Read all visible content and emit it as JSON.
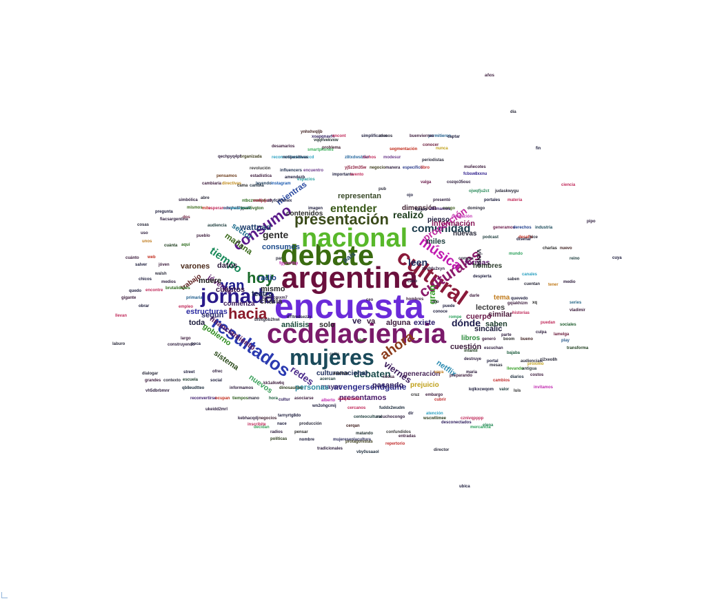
{
  "words": [
    {
      "t": "encuesta",
      "c": "#6a2bd9"
    },
    {
      "t": "argentina",
      "c": "#6a0f3c"
    },
    {
      "t": "ccdelaciencia",
      "c": "#7a1a6a"
    },
    {
      "t": "debate",
      "c": "#3a6b10"
    },
    {
      "t": "mujeres",
      "c": "#1a4a5a"
    },
    {
      "t": "nacional",
      "c": "#58b82a"
    },
    {
      "t": "cultural",
      "c": "#8a1a3a"
    },
    {
      "t": "jornada",
      "c": "#2a1a8a"
    },
    {
      "t": "presentación",
      "c": "#3a4a1a"
    },
    {
      "t": "resultados",
      "c": "#2a3ab0"
    },
    {
      "t": "hoy",
      "c": "#1a6a2a"
    },
    {
      "t": "consumo",
      "c": "#5a1a8a"
    },
    {
      "t": "hacia",
      "c": "#8a1a2a"
    },
    {
      "t": "culturales",
      "c": "#8a1a6a"
    },
    {
      "t": "música",
      "c": "#c01ab0"
    },
    {
      "t": "van",
      "c": "#1a1a8a"
    },
    {
      "t": "ahora",
      "c": "#8a3a1a"
    },
    {
      "t": "entender",
      "c": "#3a5a1a"
    },
    {
      "t": "tiempo",
      "c": "#1a8a5a"
    },
    {
      "t": "comunidad",
      "c": "#1a3a4a"
    },
    {
      "t": "gente",
      "c": "#2a2a2a"
    },
    {
      "t": "debaten",
      "c": "#1a4a4a"
    },
    {
      "t": "proporción",
      "c": "#c02aa0"
    },
    {
      "t": "realizó",
      "c": "#1a3a1a"
    },
    {
      "t": "ve",
      "c": "#2a1a4a"
    },
    {
      "t": "va",
      "c": "#3a1a3a"
    },
    {
      "t": "leen",
      "c": "#1a2a5a"
    },
    {
      "t": "dónde",
      "c": "#1a1a4a"
    },
    {
      "t": "redes",
      "c": "#4a2a8a"
    },
    {
      "t": "viernes",
      "c": "#3a1a5a"
    },
    {
      "t": "gran",
      "c": "#3aa02a"
    },
    {
      "t": "mientras",
      "c": "#2a4aa0"
    },
    {
      "t": "sector",
      "c": "#1a6a8a"
    },
    {
      "t": "wattpad",
      "c": "#1a3a6a"
    },
    {
      "t": "mañana",
      "c": "#3a6a1a"
    },
    {
      "t": "jóvenes",
      "c": "#5a1a6a"
    },
    {
      "t": "estructuras",
      "c": "#2a2aa0"
    },
    {
      "t": "gobierno",
      "c": "#2a8a1a"
    },
    {
      "t": "financiamiento",
      "c": "#5a1a5a"
    },
    {
      "t": "sistema",
      "c": "#2a4a1a"
    },
    {
      "t": "nuevos",
      "c": "#3aa05a"
    },
    {
      "t": "avengersendgame",
      "c": "#2a2a8a"
    },
    {
      "t": "presentamos",
      "c": "#4a1a6a"
    },
    {
      "t": "culturanacionar",
      "c": "#1a2a5a"
    },
    {
      "t": "representan",
      "c": "#3a4a2a"
    },
    {
      "t": "contenidos",
      "c": "#2a2a2a"
    },
    {
      "t": "dimensión",
      "c": "#3a1a2a"
    },
    {
      "t": "pienso",
      "c": "#1a1a3a"
    },
    {
      "t": "información",
      "c": "#8a1a5a"
    },
    {
      "t": "nuevas",
      "c": "#2a2a3a"
    },
    {
      "t": "miles",
      "c": "#1a3a3a"
    },
    {
      "t": "formas",
      "c": "#5a1a6a"
    },
    {
      "t": "hombres",
      "c": "#2a3a2a"
    },
    {
      "t": "viene",
      "c": "#1a1a2a"
    },
    {
      "t": "tema",
      "c": "#c07a1a"
    },
    {
      "t": "lectores",
      "c": "#3a3a3a"
    },
    {
      "t": "similar",
      "c": "#4a1a3a"
    },
    {
      "t": "saben",
      "c": "#1a3a2a"
    },
    {
      "t": "cuerpo",
      "c": "#6a1a4a"
    },
    {
      "t": "existe",
      "c": "#2a1a6a"
    },
    {
      "t": "libros",
      "c": "#2a8a3a"
    },
    {
      "t": "sincalic",
      "c": "#1a1a3a"
    },
    {
      "t": "cuestión",
      "c": "#3a1a3a"
    },
    {
      "t": "netflix",
      "c": "#2a8ab0"
    },
    {
      "t": "generación",
      "c": "#4a2a5a"
    },
    {
      "t": "prejuicio",
      "c": "#c0a01a"
    },
    {
      "t": "mayor",
      "c": "#3a2a6a"
    },
    {
      "t": "personas",
      "c": "#2a8aa0"
    },
    {
      "t": "pasando",
      "c": "#2a1a5a"
    },
    {
      "t": "teatro",
      "c": "#1a2a4a"
    },
    {
      "t": "consumos",
      "c": "#1a4a8a"
    },
    {
      "t": "mismo",
      "c": "#2a2a2a"
    },
    {
      "t": "charla",
      "c": "#3a3a3a"
    },
    {
      "t": "radio",
      "c": "#1a3a8a"
    },
    {
      "t": "datos",
      "c": "#2a1a3a"
    },
    {
      "t": "cuántos",
      "c": "#3a1a4a"
    },
    {
      "t": "muere",
      "c": "#1a1a1a"
    },
    {
      "t": "varones",
      "c": "#4a2a1a"
    },
    {
      "t": "según",
      "c": "#2a2a6a"
    },
    {
      "t": "toda",
      "c": "#1a1a3a"
    },
    {
      "t": "comienza",
      "c": "#3a1a5a"
    },
    {
      "t": "análisis",
      "c": "#1a4a3a"
    },
    {
      "t": "solo",
      "c": "#2a2a2a"
    },
    {
      "t": "alguna",
      "c": "#3a1a3a"
    },
    {
      "t": "trabajo",
      "c": "#5a1a1a"
    },
    {
      "t": "país",
      "c": "#2a4a6a"
    },
    {
      "t": "encuentro",
      "c": "#6a3a8a"
    },
    {
      "t": "problema",
      "c": "#3a1a2a"
    },
    {
      "t": "segmentación",
      "c": "#c02a1a"
    },
    {
      "t": "periodistas",
      "c": "#2a2a3a"
    },
    {
      "t": "influencers",
      "c": "#1a2a4a"
    },
    {
      "t": "estadística",
      "c": "#3a1a3a"
    },
    {
      "t": "revolución",
      "c": "#3a3a3a"
    },
    {
      "t": "pensamos",
      "c": "#6a3a1a"
    },
    {
      "t": "leyendo",
      "c": "#1a3a5a"
    },
    {
      "t": "directivas",
      "c": "#c08a1a"
    },
    {
      "t": "espacios",
      "c": "#2aa0a0"
    },
    {
      "t": "instagram",
      "c": "#1a5ab0"
    },
    {
      "t": "desamarios",
      "c": "#3a1a3a"
    },
    {
      "t": "recomendacionesccd",
      "c": "#2aa0c0"
    },
    {
      "t": "smartphones",
      "c": "#3ab05a"
    },
    {
      "t": "notipositivas",
      "c": "#1a1a3a"
    },
    {
      "t": "organizada",
      "c": "#3a3a1a"
    },
    {
      "t": "qechpyq4pf",
      "c": "#2a1a3a"
    },
    {
      "t": "vqqhvekvxw",
      "c": "#1a2a2a"
    },
    {
      "t": "xoapqnavf4",
      "c": "#2a1a5a"
    },
    {
      "t": "ynhxhvqljb",
      "c": "#3a1a1a"
    },
    {
      "t": "z8txdwsb5w",
      "c": "#2a6aa0"
    },
    {
      "t": "nichos",
      "c": "#c02a5a"
    },
    {
      "t": "modesur",
      "c": "#6a3a8a"
    },
    {
      "t": "nunca",
      "c": "#c0a01a"
    },
    {
      "t": "yj5z3m35w",
      "c": "#8a1a3a"
    },
    {
      "t": "específico",
      "c": "#2a3a8a"
    },
    {
      "t": "libro",
      "c": "#c02a2a"
    },
    {
      "t": "muñecotes",
      "c": "#3a1a3a"
    },
    {
      "t": "valga",
      "c": "#6a1a4a"
    },
    {
      "t": "cozqo35ouc",
      "c": "#2a1a3a"
    },
    {
      "t": "ojwqfju2ct",
      "c": "#2a8a5a"
    },
    {
      "t": "judaskwygu",
      "c": "#2a2a3a"
    },
    {
      "t": "portales",
      "c": "#1a1a3a"
    },
    {
      "t": "materia",
      "c": "#c02a5a"
    },
    {
      "t": "presentó",
      "c": "#2a1a3a"
    },
    {
      "t": "congo",
      "c": "#3a5a1a"
    },
    {
      "t": "afirmamos",
      "c": "#3a1a6a"
    },
    {
      "t": "domingo",
      "c": "#2a2a3a"
    },
    {
      "t": "generamos",
      "c": "#6a1a4a"
    },
    {
      "t": "derechos",
      "c": "#1a3a8a"
    },
    {
      "t": "industria",
      "c": "#1a4a5a"
    },
    {
      "t": "podcast",
      "c": "#1a3a3a"
    },
    {
      "t": "desafío",
      "c": "#c02a1a"
    },
    {
      "t": "hice",
      "c": "#2a2a3a"
    },
    {
      "t": "mundo",
      "c": "#2aa05a"
    },
    {
      "t": "charlas",
      "c": "#2a2a2a"
    },
    {
      "t": "nuevo",
      "c": "#3a1a1a"
    },
    {
      "t": "tener",
      "c": "#c07a1a"
    },
    {
      "t": "medio",
      "c": "#2a1a3a"
    },
    {
      "t": "reino",
      "c": "#1a3a3a"
    },
    {
      "t": "series",
      "c": "#2a6a8a"
    },
    {
      "t": "vladimir",
      "c": "#3a1a3a"
    },
    {
      "t": "sociales",
      "c": "#1a5a2a"
    },
    {
      "t": "puedan",
      "c": "#c02a5a"
    },
    {
      "t": "lamelga",
      "c": "#6a1a3a"
    },
    {
      "t": "play",
      "c": "#2a5a8a"
    },
    {
      "t": "transforma",
      "c": "#1a3a1a"
    },
    {
      "t": "zj2xeo8h",
      "c": "#2a2a3a"
    },
    {
      "t": "próximo",
      "c": "#c0a01a"
    },
    {
      "t": "llevando",
      "c": "#3aa02a"
    },
    {
      "t": "cambios",
      "c": "#c02a2a"
    },
    {
      "t": "invitamos",
      "c": "#c02ab0"
    },
    {
      "t": "reconvertirse",
      "c": "#3a1a6a"
    },
    {
      "t": "ocupan",
      "c": "#c02a1a"
    },
    {
      "t": "tiempos",
      "c": "#2a5a1a"
    },
    {
      "t": "mano",
      "c": "#2a2a3a"
    },
    {
      "t": "hora",
      "c": "#1a5a3a"
    },
    {
      "t": "asociarse",
      "c": "#3a1a3a"
    },
    {
      "t": "auspiciadas",
      "c": "#c02a5a"
    },
    {
      "t": "cruz",
      "c": "#2a2a2a"
    },
    {
      "t": "embargo",
      "c": "#3a1a3a"
    },
    {
      "t": "kqlkxcwqom",
      "c": "#1a1a3a"
    },
    {
      "t": "informamos",
      "c": "#2a1a3a"
    },
    {
      "t": "dinosaurios",
      "c": "#2a3a1a"
    },
    {
      "t": "qb8eudtteo",
      "c": "#1a2a3a"
    },
    {
      "t": "vh5dbrbmnr",
      "c": "#2a1a3a"
    },
    {
      "t": "kk1alkw6q",
      "c": "#3a1a3a"
    },
    {
      "t": "escuela",
      "c": "#1a3a2a"
    },
    {
      "t": "cubrir",
      "c": "#c02a2a"
    },
    {
      "t": "wn2ohgcmij",
      "c": "#1a1a3a"
    },
    {
      "t": "cercanos",
      "c": "#c02a5a"
    },
    {
      "t": "fuddx2wudm",
      "c": "#1a2a3a"
    },
    {
      "t": "escuchocongo",
      "c": "#2a1a3a"
    },
    {
      "t": "centeocultural",
      "c": "#1a3a3a"
    },
    {
      "t": "confundidos",
      "c": "#3a3a3a"
    },
    {
      "t": "cznivqpppp",
      "c": "#c02a5a"
    },
    {
      "t": "mercancía",
      "c": "#2aa05a"
    },
    {
      "t": "decidan",
      "c": "#3aa05a"
    },
    {
      "t": "kebhacqdj",
      "c": "#2a1a3a"
    },
    {
      "t": "negocios",
      "c": "#3a1a2a"
    },
    {
      "t": "tarnyrtg8do",
      "c": "#1a1a3a"
    },
    {
      "t": "radios",
      "c": "#2a1a3a"
    },
    {
      "t": "pensar",
      "c": "#2a2a2a"
    },
    {
      "t": "matando",
      "c": "#1a2a2a"
    },
    {
      "t": "entradas",
      "c": "#3a1a3a"
    },
    {
      "t": "políticas",
      "c": "#2a3a1a"
    },
    {
      "t": "nombre",
      "c": "#1a1a3a"
    },
    {
      "t": "mujeresenlacultura",
      "c": "#2a2a5a"
    },
    {
      "t": "repertorio",
      "c": "#c02a2a"
    },
    {
      "t": "tradicionales",
      "c": "#2a1a3a"
    },
    {
      "t": "protagonistas",
      "c": "#3a3a1a"
    },
    {
      "t": "producción",
      "c": "#2a2a3a"
    },
    {
      "t": "vby0usaaol",
      "c": "#1a2a3a"
    },
    {
      "t": "wscwllimee",
      "c": "#2a3a1a"
    },
    {
      "t": "desconectados",
      "c": "#2a1a5a"
    },
    {
      "t": "encont",
      "c": "#c02a5a"
    },
    {
      "t": "simplificados",
      "c": "#1a1a3a"
    },
    {
      "t": "menos",
      "c": "#2a2a3a"
    },
    {
      "t": "permitieron",
      "c": "#1a5a8a"
    },
    {
      "t": "buenviernes",
      "c": "#3a1a3a"
    },
    {
      "t": "captar",
      "c": "#1a1a3a"
    },
    {
      "t": "conocer",
      "c": "#6a1a3a"
    },
    {
      "t": "importante",
      "c": "#1a1a3a"
    },
    {
      "t": "evento",
      "c": "#c02a5a"
    },
    {
      "t": "negocio",
      "c": "#3a3a1a"
    },
    {
      "t": "manera",
      "c": "#2a1a3a"
    },
    {
      "t": "fcbsw8xxnu",
      "c": "#2a1a8a"
    },
    {
      "t": "diseñar",
      "c": "#1a1a3a"
    },
    {
      "t": "cuentan",
      "c": "#2a2a3a"
    },
    {
      "t": "xq",
      "c": "#1a1a1a"
    },
    {
      "t": "gqiakhizm",
      "c": "#3a1a3a"
    },
    {
      "t": "saben",
      "c": "#2a2a3a"
    },
    {
      "t": "canales",
      "c": "#2aa0c0"
    },
    {
      "t": "bajaba",
      "c": "#1a5a3a"
    },
    {
      "t": "escuchan",
      "c": "#2a1a3a"
    },
    {
      "t": "boom",
      "c": "#2a2a2a"
    },
    {
      "t": "bueno",
      "c": "#3a1a1a"
    },
    {
      "t": "culpa",
      "c": "#2a1a3a"
    },
    {
      "t": "diarios",
      "c": "#1a2a3a"
    },
    {
      "t": "antigua",
      "c": "#2a3a3a"
    },
    {
      "t": "costos",
      "c": "#3a1a3a"
    },
    {
      "t": "elena",
      "c": "#2a8a5a"
    },
    {
      "t": "valor",
      "c": "#1a3a3a"
    },
    {
      "t": "luis",
      "c": "#2a2a2a"
    },
    {
      "t": "portal",
      "c": "#1a1a3a"
    },
    {
      "t": "destruye",
      "c": "#2a1a3a"
    },
    {
      "t": "infantil",
      "c": "#1a3a1a"
    },
    {
      "t": "mesas",
      "c": "#2a2a3a"
    },
    {
      "t": "preparando",
      "c": "#3a1a3a"
    },
    {
      "t": "vaya",
      "c": "#c07a1a"
    },
    {
      "t": "maria",
      "c": "#2a1a3a"
    },
    {
      "t": "culta",
      "c": "#1a2a3a"
    },
    {
      "t": "analizar",
      "c": "#2a2a2a"
    },
    {
      "t": "acercan",
      "c": "#1a3a3a"
    },
    {
      "t": "cerqan",
      "c": "#3a1a1a"
    },
    {
      "t": "alberto",
      "c": "#c02ab0"
    },
    {
      "t": "cultur",
      "c": "#2a1a5a"
    },
    {
      "t": "nace",
      "c": "#1a1a3a"
    },
    {
      "t": "cama",
      "c": "#2a2a2a"
    },
    {
      "t": "cambia",
      "c": "#1a2a3a"
    },
    {
      "t": "cambiaría",
      "c": "#3a1a3a"
    },
    {
      "t": "abre",
      "c": "#2a2a3a"
    },
    {
      "t": "mito",
      "c": "#c02a1a"
    },
    {
      "t": "hqha8lypni",
      "c": "#1a1a3a"
    },
    {
      "t": "ntbczwwas6",
      "c": "#2a6a1a"
    },
    {
      "t": "uw8jxjatn",
      "c": "#c02a5a"
    },
    {
      "t": "u8yfcjfnmwx",
      "c": "#1a1a3a"
    },
    {
      "t": "simbólica",
      "c": "#2a1a3a"
    },
    {
      "t": "mismos",
      "c": "#3a6a1a"
    },
    {
      "t": "esperamos",
      "c": "#c02a5a"
    },
    {
      "t": "consecuencia",
      "c": "#2aa0c0"
    },
    {
      "t": "bsa45vgton",
      "c": "#2a5a1a"
    },
    {
      "t": "pregunta",
      "c": "#1a1a3a"
    },
    {
      "t": "fiacsargentina",
      "c": "#2a1a3a"
    },
    {
      "t": "dos",
      "c": "#6a1a3a"
    },
    {
      "t": "cosas",
      "c": "#2a2a3a"
    },
    {
      "t": "audiencia",
      "c": "#1a3a3a"
    },
    {
      "t": "uso",
      "c": "#2a1a3a"
    },
    {
      "t": "pueblo",
      "c": "#3a1a3a"
    },
    {
      "t": "unos",
      "c": "#c07a1a"
    },
    {
      "t": "aquí",
      "c": "#2a6a1a"
    },
    {
      "t": "cuánta",
      "c": "#1a3a1a"
    },
    {
      "t": "cuánto",
      "c": "#3a1a3a"
    },
    {
      "t": "web",
      "c": "#c02a1a"
    },
    {
      "t": "salver",
      "c": "#1a1a3a"
    },
    {
      "t": "jóven",
      "c": "#3a1a3a"
    },
    {
      "t": "walsh",
      "c": "#2a2a3a"
    },
    {
      "t": "chicos",
      "c": "#1a1a3a"
    },
    {
      "t": "medios",
      "c": "#2a1a3a"
    },
    {
      "t": "encontre",
      "c": "#c02a5a"
    },
    {
      "t": "quedo",
      "c": "#1a1a3a"
    },
    {
      "t": "brutalidades",
      "c": "#2a6a1a"
    },
    {
      "t": "gigante",
      "c": "#3a1a3a"
    },
    {
      "t": "primaria",
      "c": "#1a5a8a"
    },
    {
      "t": "llevan",
      "c": "#c02a5a"
    },
    {
      "t": "obrar",
      "c": "#1a1a3a"
    },
    {
      "t": "empleo",
      "c": "#c02a5a"
    },
    {
      "t": "laburo",
      "c": "#2a2a3a"
    },
    {
      "t": "construyendo",
      "c": "#2a1a3a"
    },
    {
      "t": "poca",
      "c": "#1a1a3a"
    },
    {
      "t": "largo",
      "c": "#3a1a3a"
    },
    {
      "t": "dialogar",
      "c": "#2a2a3a"
    },
    {
      "t": "street",
      "c": "#1a1a3a"
    },
    {
      "t": "ofrec",
      "c": "#2a1a3a"
    },
    {
      "t": "contexto",
      "c": "#2a2a3a"
    },
    {
      "t": "grandes",
      "c": "#3a1a3a"
    },
    {
      "t": "social",
      "c": "#1a1a3a"
    },
    {
      "t": "ukeidd2mrl",
      "c": "#2a1a3a"
    },
    {
      "t": "inscribite",
      "c": "#c02a5a"
    },
    {
      "t": "atención",
      "c": "#2aa0c0"
    },
    {
      "t": "zbvhfu2xyn",
      "c": "#2a1a3a"
    },
    {
      "t": "despierta",
      "c": "#1a1a3a"
    },
    {
      "t": "compra",
      "c": "#2a2a3a"
    },
    {
      "t": "darle",
      "c": "#3a1a3a"
    },
    {
      "t": "quevedo",
      "c": "#1a1a3a"
    },
    {
      "t": "historias",
      "c": "#c02a5a"
    },
    {
      "t": "parte",
      "c": "#2a1a3a"
    },
    {
      "t": "audiencias",
      "c": "#2a2a3a"
    },
    {
      "t": "generó",
      "c": "#3a1a3a"
    },
    {
      "t": "obligación",
      "c": "#c02ab0"
    },
    {
      "t": "futuro",
      "c": "#1a1a3a"
    },
    {
      "t": "pub",
      "c": "#2a2a3a"
    },
    {
      "t": "ojo",
      "c": "#1a1a3a"
    },
    {
      "t": "ceo",
      "c": "#2a1a3a"
    },
    {
      "t": "hombres",
      "c": "#3a1a3a"
    },
    {
      "t": "dijo",
      "c": "#2a2a3a"
    },
    {
      "t": "conoce",
      "c": "#1a1a3a"
    },
    {
      "t": "puede",
      "c": "#1a1a3a"
    },
    {
      "t": "rompe",
      "c": "#2aa05a"
    },
    {
      "t": "cabo",
      "c": "#2a1a3a"
    },
    {
      "t": "imagen",
      "c": "#1a1a3a"
    },
    {
      "t": "par",
      "c": "#2a2a3a"
    },
    {
      "t": "fgycvrtbp",
      "c": "#c02ab0"
    },
    {
      "t": "b3kqrcmxm7",
      "c": "#2a1a3a"
    },
    {
      "t": "d7ltmdsezzy",
      "c": "#1a1a3a"
    },
    {
      "t": "bf9xgob2hwi",
      "c": "#2a2a3a"
    },
    {
      "t": "amendezb",
      "c": "#1a1a3a"
    },
    {
      "t": "ideo",
      "c": "#2a5a1a"
    },
    {
      "t": "ccosa",
      "c": "#3a1a3a"
    },
    {
      "t": "dir",
      "c": "#1a1a3a"
    },
    {
      "t": "director",
      "c": "#2a2a3a"
    },
    {
      "t": "ubica",
      "c": "#1a1a3a"
    },
    {
      "t": "años",
      "c": "#3a1a3a"
    },
    {
      "t": "día",
      "c": "#2a2a3a"
    },
    {
      "t": "fin",
      "c": "#1a1a3a"
    },
    {
      "t": "ciencia",
      "c": "#c02a5a"
    },
    {
      "t": "pipo",
      "c": "#2a1a3a"
    },
    {
      "t": "cuya",
      "c": "#1a1a3a"
    }
  ]
}
